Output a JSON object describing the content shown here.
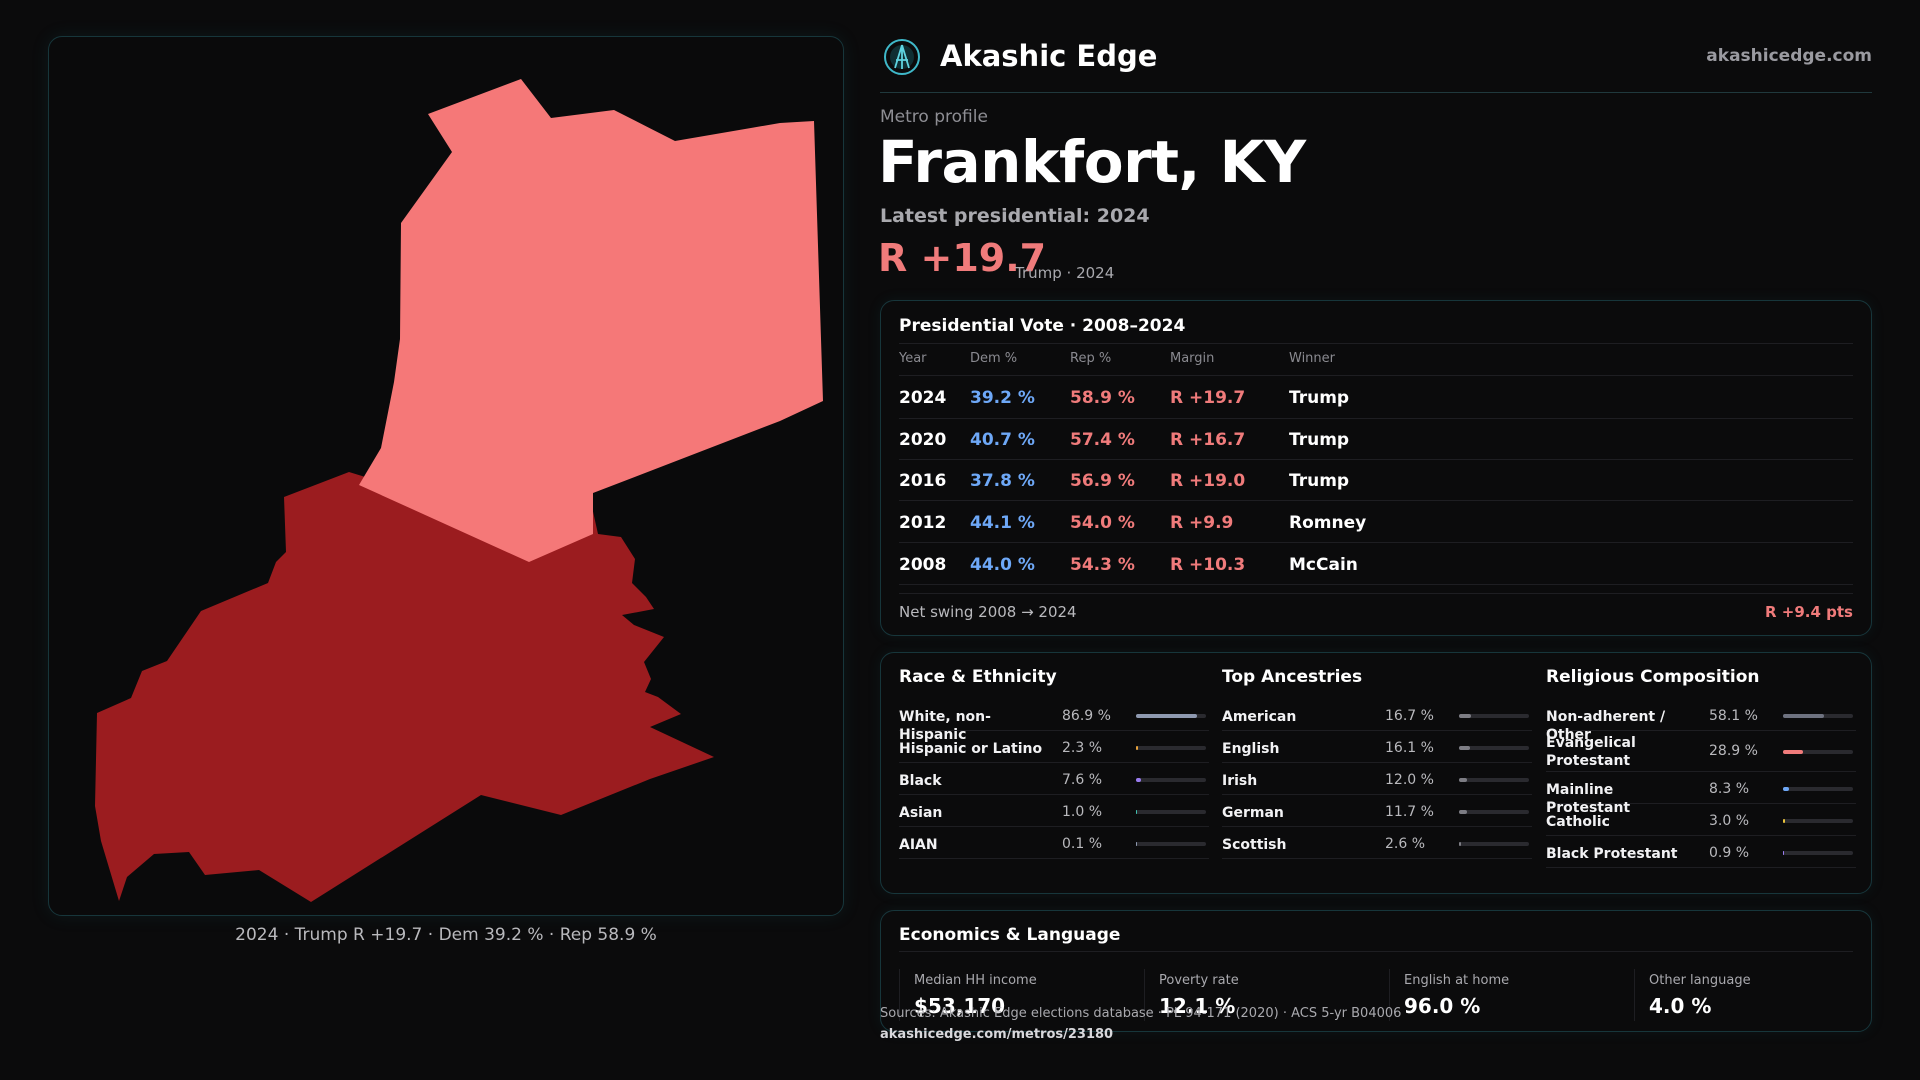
{
  "brand": {
    "name": "Akashic Edge",
    "url": "akashicedge.com",
    "logo_icon": "akashic-edge-logo-icon"
  },
  "profile": {
    "eyebrow": "Metro profile",
    "title": "Frankfort, KY",
    "subtitle": "Latest presidential: 2024",
    "margin": "R +19.7",
    "margin_sub": "Trump · 2024"
  },
  "map": {
    "caption": "2024 · Trump R +19.7 · Dem 39.2 % · Rep 58.9 %",
    "colors": {
      "light_red": "#f57878",
      "dark_red": "#9b1c1f"
    }
  },
  "vote": {
    "title": "Presidential Vote · 2008–2024",
    "headers": {
      "year": "Year",
      "dem": "Dem %",
      "rep": "Rep %",
      "margin": "Margin",
      "winner": "Winner"
    },
    "rows": [
      {
        "year": "2024",
        "dem": "39.2 %",
        "rep": "58.9 %",
        "margin": "R +19.7",
        "winner": "Trump"
      },
      {
        "year": "2020",
        "dem": "40.7 %",
        "rep": "57.4 %",
        "margin": "R +16.7",
        "winner": "Trump"
      },
      {
        "year": "2016",
        "dem": "37.8 %",
        "rep": "56.9 %",
        "margin": "R +19.0",
        "winner": "Trump"
      },
      {
        "year": "2012",
        "dem": "44.1 %",
        "rep": "54.0 %",
        "margin": "R +9.9",
        "winner": "Romney"
      },
      {
        "year": "2008",
        "dem": "44.0 %",
        "rep": "54.3 %",
        "margin": "R +10.3",
        "winner": "McCain"
      }
    ],
    "swing_label": "Net swing 2008 → 2024",
    "swing_value": "R +9.4 pts",
    "colors": {
      "dem": "#6ea8f7",
      "rep": "#f07b7b"
    }
  },
  "race": {
    "title": "Race & Ethnicity",
    "items": [
      {
        "label": "White, non-Hispanic",
        "pct": "86.9 %",
        "value": 0.869,
        "color": "#8e99b0"
      },
      {
        "label": "Hispanic or Latino",
        "pct": "2.3 %",
        "value": 0.023,
        "color": "#e8a23c"
      },
      {
        "label": "Black",
        "pct": "7.6 %",
        "value": 0.076,
        "color": "#9a7cf0"
      },
      {
        "label": "Asian",
        "pct": "1.0 %",
        "value": 0.01,
        "color": "#3fc1b0"
      },
      {
        "label": "AIAN",
        "pct": "0.1 %",
        "value": 0.001,
        "color": "#8e99b0"
      }
    ]
  },
  "ancestry": {
    "title": "Top Ancestries",
    "items": [
      {
        "label": "American",
        "pct": "16.7 %",
        "value": 0.167,
        "color": "#7d7d84"
      },
      {
        "label": "English",
        "pct": "16.1 %",
        "value": 0.161,
        "color": "#7d7d84"
      },
      {
        "label": "Irish",
        "pct": "12.0 %",
        "value": 0.12,
        "color": "#7d7d84"
      },
      {
        "label": "German",
        "pct": "11.7 %",
        "value": 0.117,
        "color": "#7d7d84"
      },
      {
        "label": "Scottish",
        "pct": "2.6 %",
        "value": 0.026,
        "color": "#7d7d84"
      }
    ]
  },
  "religion": {
    "title": "Religious Composition",
    "items": [
      {
        "label": "Non-adherent / Other",
        "pct": "58.1 %",
        "value": 0.581,
        "color": "#6e7280"
      },
      {
        "label": "Evangelical Protestant",
        "pct": "28.9 %",
        "value": 0.289,
        "color": "#f07b7b",
        "tall": true
      },
      {
        "label": "Mainline Protestant",
        "pct": "8.3 %",
        "value": 0.083,
        "color": "#6ea8f7"
      },
      {
        "label": "Catholic",
        "pct": "3.0 %",
        "value": 0.03,
        "color": "#e8c23c"
      },
      {
        "label": "Black Protestant",
        "pct": "0.9 %",
        "value": 0.009,
        "color": "#9a7cf0"
      }
    ]
  },
  "economics": {
    "title": "Economics & Language",
    "items": [
      {
        "label": "Median HH income",
        "value": "$53,170"
      },
      {
        "label": "Poverty rate",
        "value": "12.1 %"
      },
      {
        "label": "English at home",
        "value": "96.0 %"
      },
      {
        "label": "Other language",
        "value": "4.0 %"
      }
    ]
  },
  "footer": {
    "sources": "Sources: Akashic Edge elections database · PL 94-171 (2020) · ACS 5-yr B04006",
    "url": "akashicedge.com/metros/23180"
  }
}
